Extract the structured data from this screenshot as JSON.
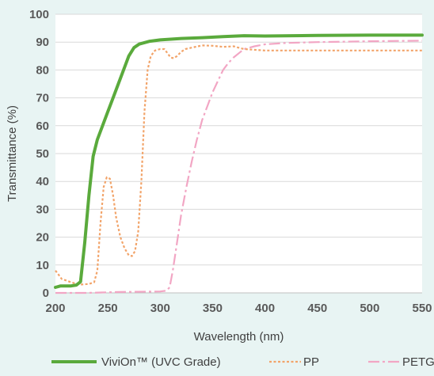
{
  "chart_data": {
    "type": "line",
    "title": "",
    "xlabel": "Wavelength (nm)",
    "ylabel": "Transmittance (%)",
    "xlim": [
      200,
      550
    ],
    "ylim": [
      0,
      100
    ],
    "x_ticks": [
      200,
      250,
      300,
      350,
      400,
      450,
      500,
      550
    ],
    "y_ticks": [
      0,
      10,
      20,
      30,
      40,
      50,
      60,
      70,
      80,
      90,
      100
    ],
    "grid": "horizontal",
    "legend_position": "bottom",
    "series": [
      {
        "name": "ViviOn™ (UVC Grade)",
        "color": "#5aaa3c",
        "line_style": "solid",
        "points": [
          [
            200,
            2
          ],
          [
            205,
            2.5
          ],
          [
            210,
            2.5
          ],
          [
            215,
            2.5
          ],
          [
            220,
            2.8
          ],
          [
            224,
            4
          ],
          [
            228,
            18
          ],
          [
            232,
            35
          ],
          [
            236,
            49
          ],
          [
            240,
            55
          ],
          [
            245,
            60
          ],
          [
            250,
            65
          ],
          [
            255,
            70
          ],
          [
            260,
            75
          ],
          [
            265,
            80
          ],
          [
            270,
            85
          ],
          [
            275,
            88
          ],
          [
            280,
            89.3
          ],
          [
            290,
            90.3
          ],
          [
            300,
            90.8
          ],
          [
            320,
            91.3
          ],
          [
            340,
            91.6
          ],
          [
            360,
            92
          ],
          [
            380,
            92.3
          ],
          [
            400,
            92.2
          ],
          [
            450,
            92.4
          ],
          [
            500,
            92.5
          ],
          [
            550,
            92.5
          ]
        ]
      },
      {
        "name": "PP",
        "color": "#f2a46a",
        "line_style": "dotted",
        "points": [
          [
            200,
            8
          ],
          [
            203,
            6.5
          ],
          [
            206,
            5
          ],
          [
            210,
            4.5
          ],
          [
            215,
            3.8
          ],
          [
            220,
            3.3
          ],
          [
            225,
            3
          ],
          [
            232,
            3.2
          ],
          [
            237,
            3.8
          ],
          [
            240,
            8
          ],
          [
            243,
            25
          ],
          [
            246,
            38
          ],
          [
            249,
            41.5
          ],
          [
            252,
            41
          ],
          [
            255,
            35
          ],
          [
            258,
            27
          ],
          [
            262,
            20
          ],
          [
            266,
            16
          ],
          [
            270,
            13.5
          ],
          [
            273,
            13.2
          ],
          [
            276,
            15
          ],
          [
            279,
            22
          ],
          [
            282,
            40
          ],
          [
            285,
            65
          ],
          [
            288,
            80
          ],
          [
            291,
            85
          ],
          [
            295,
            87
          ],
          [
            300,
            87.5
          ],
          [
            304,
            87.5
          ],
          [
            307,
            86
          ],
          [
            310,
            84.5
          ],
          [
            313,
            84.2
          ],
          [
            316,
            85
          ],
          [
            320,
            86.5
          ],
          [
            324,
            87.5
          ],
          [
            330,
            88
          ],
          [
            340,
            88.8
          ],
          [
            350,
            88.7
          ],
          [
            360,
            88.3
          ],
          [
            370,
            88.5
          ],
          [
            380,
            87.5
          ],
          [
            400,
            87
          ],
          [
            450,
            87
          ],
          [
            500,
            87
          ],
          [
            550,
            87
          ]
        ]
      },
      {
        "name": "PETG",
        "color": "#f2a6c4",
        "line_style": "dashdot",
        "points": [
          [
            200,
            0
          ],
          [
            230,
            0
          ],
          [
            260,
            0.3
          ],
          [
            300,
            0.5
          ],
          [
            306,
            0.8
          ],
          [
            309,
            2
          ],
          [
            312,
            8
          ],
          [
            316,
            18
          ],
          [
            320,
            28
          ],
          [
            325,
            38
          ],
          [
            330,
            47
          ],
          [
            335,
            55
          ],
          [
            340,
            62
          ],
          [
            345,
            67
          ],
          [
            350,
            72
          ],
          [
            355,
            76
          ],
          [
            360,
            80
          ],
          [
            365,
            82.5
          ],
          [
            370,
            84.5
          ],
          [
            380,
            87.5
          ],
          [
            390,
            88.5
          ],
          [
            400,
            89.2
          ],
          [
            420,
            89.7
          ],
          [
            450,
            90
          ],
          [
            500,
            90.3
          ],
          [
            550,
            90.5
          ]
        ]
      }
    ]
  }
}
